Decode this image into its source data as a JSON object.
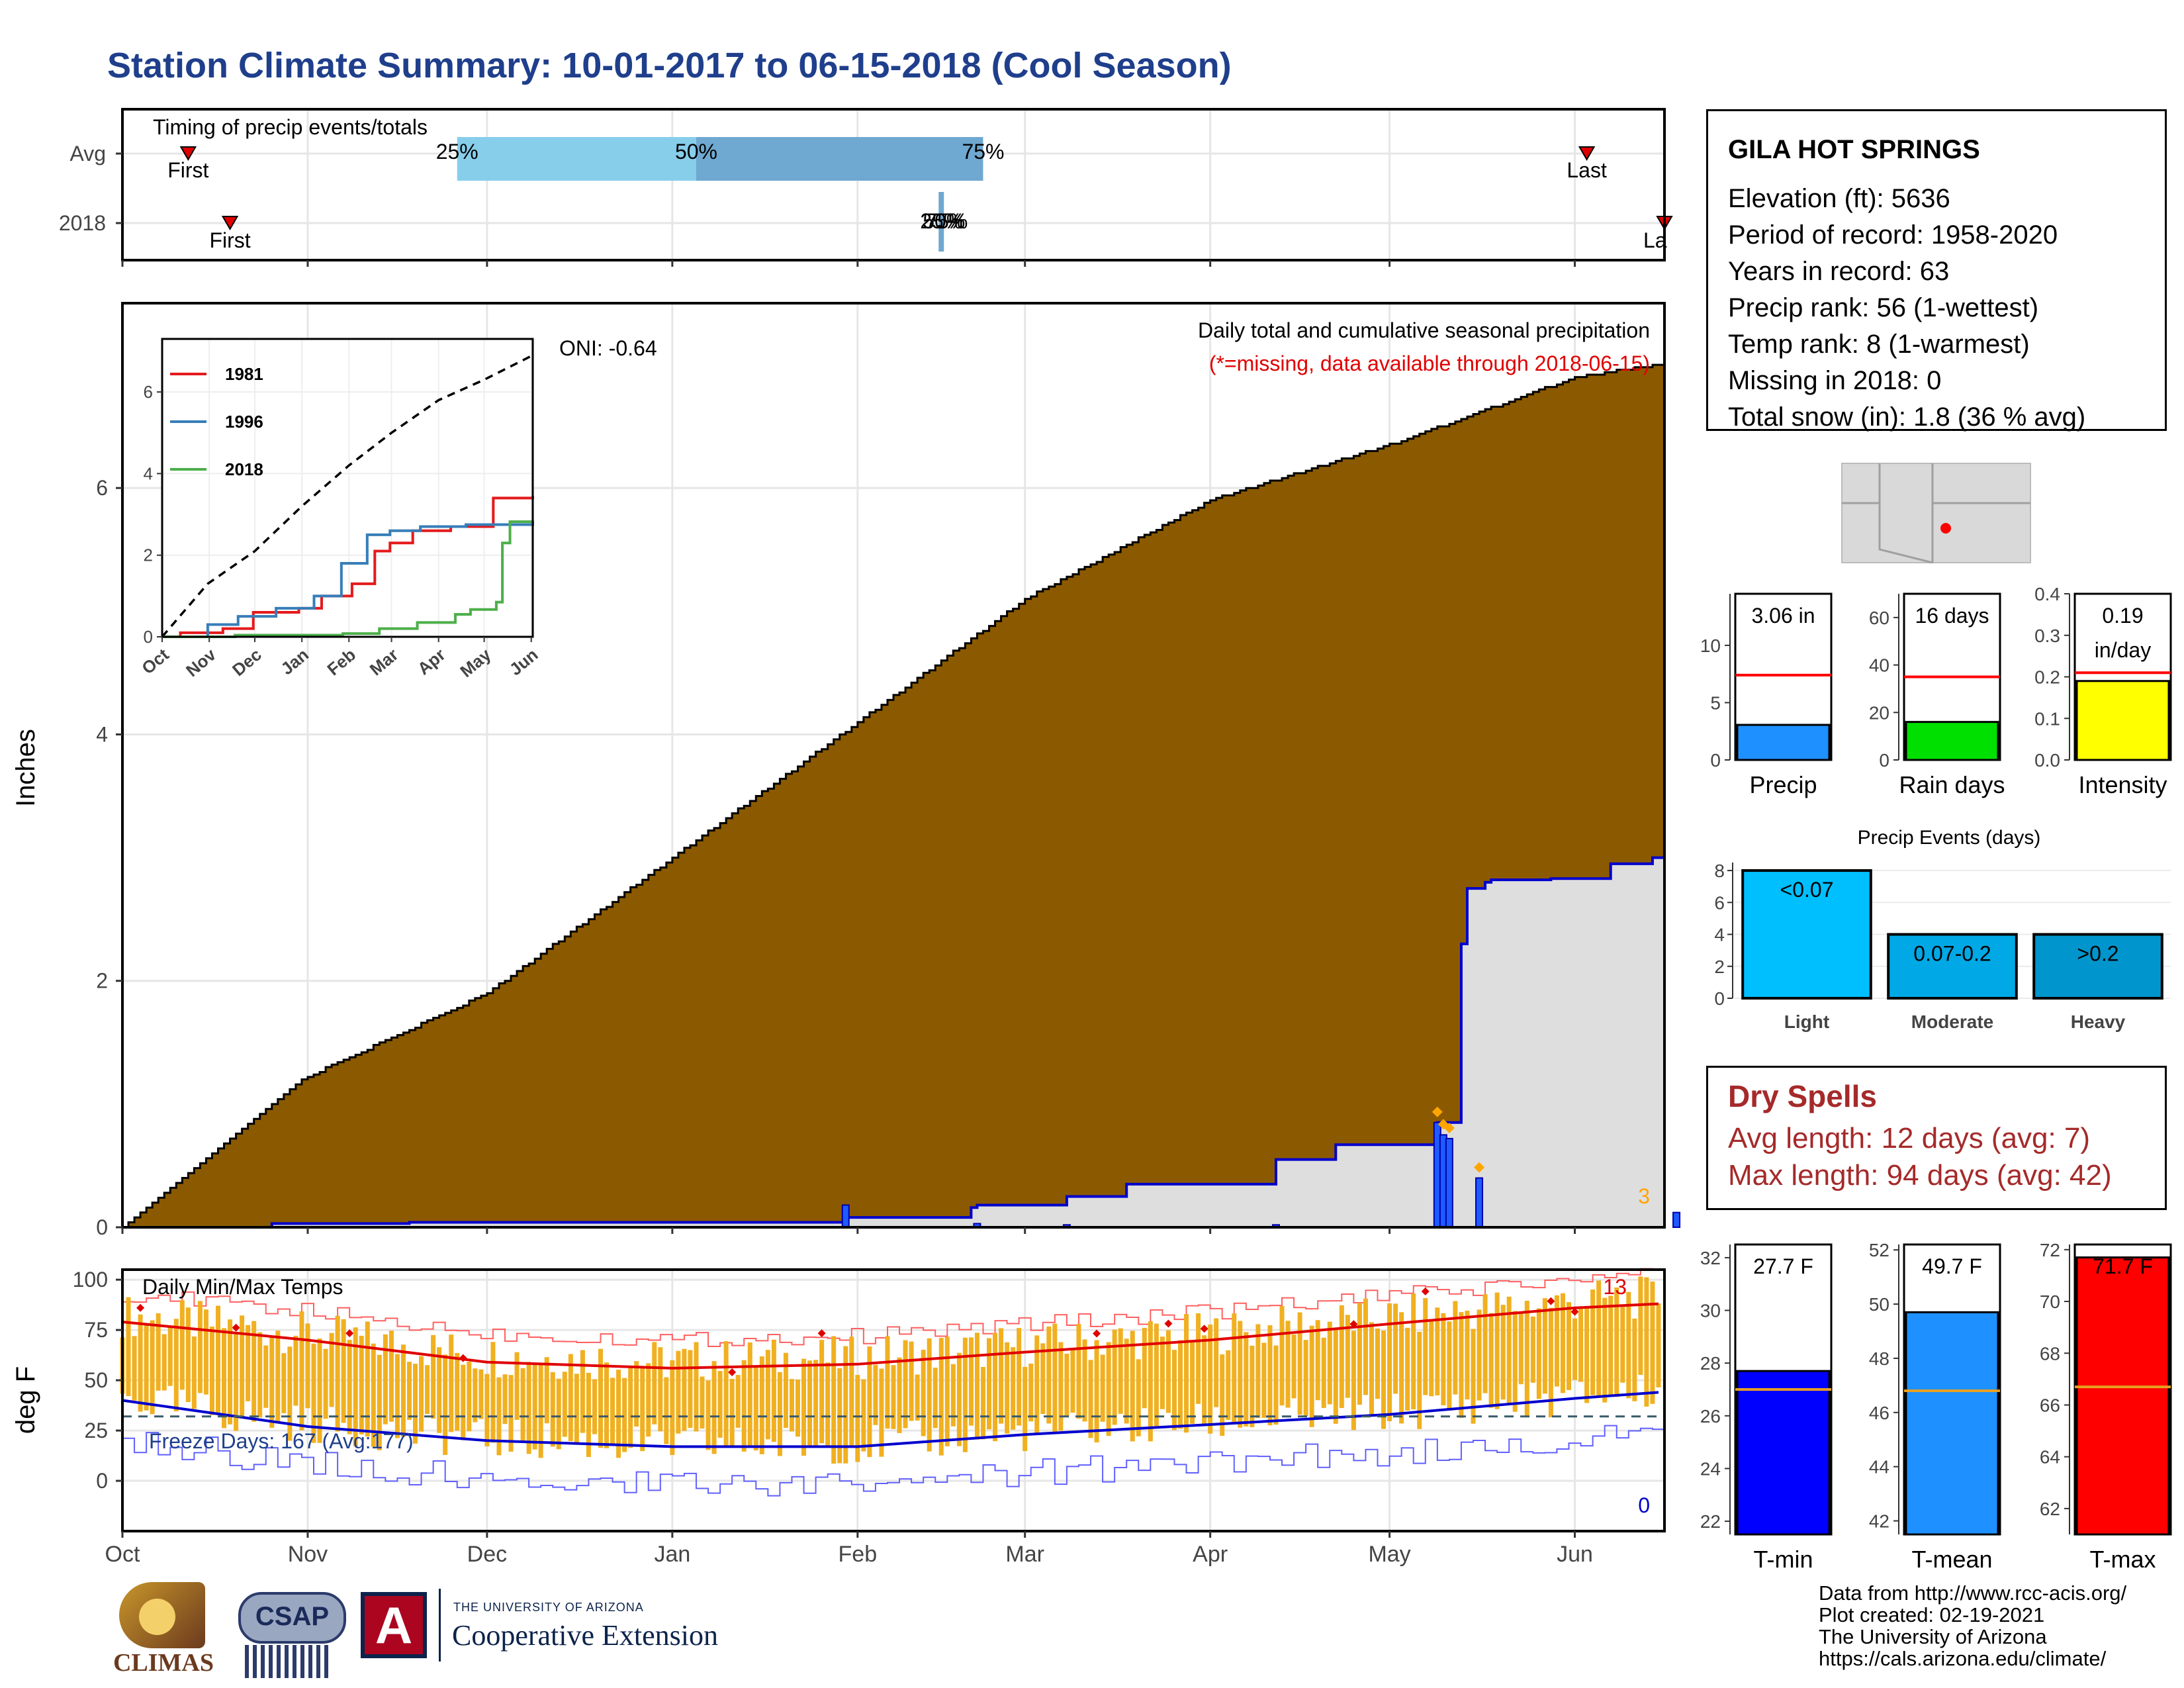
{
  "page": {
    "title": "Station Climate Summary: 10-01-2017 to 06-15-2018 (Cool Season)",
    "credits": [
      "Data from http://www.rcc-acis.org/",
      "Plot created: 02-19-2021",
      "The University of Arizona",
      "https://cals.arizona.edu/climate/"
    ],
    "logos": {
      "climas": "CLIMAS",
      "csap": "CSAP",
      "ua_small": "THE UNIVERSITY OF ARIZONA",
      "ua_big": "Cooperative Extension"
    }
  },
  "station": {
    "name": "GILA HOT SPRINGS",
    "lines": [
      "Elevation (ft): 5636",
      "Period of record: 1958-2020",
      "Years in record: 63",
      "Precip rank: 56 (1-wettest)",
      "Temp rank: 8 (1-warmest)",
      "Missing in 2018: 0",
      "Total snow (in): 1.8 (36 % avg)"
    ]
  },
  "dry_spells": {
    "title": "Dry Spells",
    "avg_line": "Avg length: 12 days (avg: 7)",
    "max_line": "Max length: 94 days (avg: 42)"
  },
  "chart_data": [
    {
      "id": "timing",
      "type": "timeline",
      "label": "Timing of precip events/totals",
      "rows": [
        "Avg",
        "2018"
      ],
      "avg": {
        "first": "Oct 12",
        "last": "Jun 3",
        "p25": "Nov 25",
        "p50": "Jan 5",
        "p75": "Feb 22"
      },
      "y2018": {
        "first": "Oct 19",
        "last": "Jun 15",
        "p25": "Feb 14",
        "p50": "Feb 14",
        "p75": "Feb 14"
      },
      "labels": {
        "first": "First",
        "last": "Last",
        "last_cut": "La",
        "p25": "25%",
        "p50": "50%",
        "p75": "75%",
        "overlap": "25%"
      },
      "colors": {
        "q1": "#87ceeb",
        "q2": "#6fa8d0",
        "marker": "#e00000",
        "bar2018": "#6fa8d0"
      }
    },
    {
      "id": "precip",
      "type": "area",
      "title": "Daily total and cumulative seasonal precipitation",
      "subtitle": "(*=missing, data available through 2018-06-15)",
      "oni": "ONI: -0.64",
      "ylabel": "Inches",
      "ylim": [
        0,
        7.5
      ],
      "yticks": [
        0,
        2,
        4,
        6
      ],
      "x_months": [
        "Oct",
        "Nov",
        "Dec",
        "Jan",
        "Feb",
        "Mar",
        "Apr",
        "May",
        "Jun"
      ],
      "corner_label": "3",
      "avg_cumulative_keypoints": [
        [
          0,
          0
        ],
        [
          30,
          1.2
        ],
        [
          61,
          1.9
        ],
        [
          92,
          3.0
        ],
        [
          123,
          4.1
        ],
        [
          151,
          5.1
        ],
        [
          182,
          5.9
        ],
        [
          212,
          6.35
        ],
        [
          243,
          6.9
        ],
        [
          257,
          7.0
        ]
      ],
      "cum2018_steps": [
        [
          25,
          0.03
        ],
        [
          48,
          0.04
        ],
        [
          119,
          0.04
        ],
        [
          121,
          0.08
        ],
        [
          142,
          0.16
        ],
        [
          143,
          0.18
        ],
        [
          158,
          0.25
        ],
        [
          168,
          0.35
        ],
        [
          193,
          0.55
        ],
        [
          203,
          0.67
        ],
        [
          220,
          0.85
        ],
        [
          224,
          2.3
        ],
        [
          225,
          2.75
        ],
        [
          228,
          2.8
        ],
        [
          229,
          2.82
        ],
        [
          239,
          2.83
        ],
        [
          249,
          2.95
        ],
        [
          256,
          3.0
        ]
      ],
      "daily_bars": [
        [
          121,
          0.18
        ],
        [
          143,
          0.03
        ],
        [
          158,
          0.02
        ],
        [
          193,
          0.02
        ],
        [
          220,
          0.85
        ],
        [
          221,
          0.75
        ],
        [
          222,
          0.72
        ],
        [
          227,
          0.4
        ],
        [
          260,
          0.12
        ]
      ],
      "colors": {
        "avg_fill": "#8b5a00",
        "obs_fill": "#dedede",
        "obs_line": "#0000cd",
        "bars": "#1e5bff",
        "extreme": "#ffa500"
      }
    },
    {
      "id": "inset",
      "type": "line",
      "xlabels": [
        "Oct",
        "Nov",
        "Dec",
        "Jan",
        "Feb",
        "Mar",
        "Apr",
        "May",
        "Jun"
      ],
      "yticks": [
        0,
        2,
        4,
        6
      ],
      "series": [
        {
          "name": "1981",
          "color": "#e41a1c",
          "points": [
            [
              0,
              0
            ],
            [
              12,
              0.1
            ],
            [
              40,
              0.2
            ],
            [
              60,
              0.6
            ],
            [
              90,
              0.7
            ],
            [
              105,
              1.0
            ],
            [
              125,
              1.3
            ],
            [
              140,
              2.1
            ],
            [
              150,
              2.3
            ],
            [
              165,
              2.6
            ],
            [
              190,
              2.7
            ],
            [
              218,
              3.4
            ],
            [
              244,
              3.45
            ]
          ]
        },
        {
          "name": "1996",
          "color": "#377eb8",
          "points": [
            [
              0,
              0
            ],
            [
              30,
              0.3
            ],
            [
              50,
              0.5
            ],
            [
              75,
              0.7
            ],
            [
              100,
              1.0
            ],
            [
              118,
              1.8
            ],
            [
              135,
              2.5
            ],
            [
              150,
              2.6
            ],
            [
              170,
              2.7
            ],
            [
              200,
              2.75
            ],
            [
              244,
              2.85
            ]
          ]
        },
        {
          "name": "2018",
          "color": "#4daf4a",
          "points": [
            [
              0,
              0
            ],
            [
              48,
              0.04
            ],
            [
              119,
              0.08
            ],
            [
              143,
              0.2
            ],
            [
              168,
              0.35
            ],
            [
              193,
              0.55
            ],
            [
              203,
              0.67
            ],
            [
              220,
              0.85
            ],
            [
              224,
              2.3
            ],
            [
              229,
              2.82
            ],
            [
              244,
              2.83
            ]
          ]
        }
      ],
      "avg_dashed": [
        [
          0,
          0
        ],
        [
          30,
          1.3
        ],
        [
          61,
          2.1
        ],
        [
          92,
          3.2
        ],
        [
          123,
          4.2
        ],
        [
          151,
          5.0
        ],
        [
          182,
          5.8
        ],
        [
          212,
          6.3
        ],
        [
          244,
          6.9
        ]
      ]
    },
    {
      "id": "bars_small",
      "type": "bar",
      "panels": [
        {
          "label": "Precip",
          "value": 3.06,
          "value_text": "3.06 in",
          "avg": 7.4,
          "ylim": [
            0,
            14.5
          ],
          "yticks": [
            0,
            5,
            10
          ],
          "color": "#1e90ff"
        },
        {
          "label": "Rain days",
          "value": 16,
          "value_text": "16 days",
          "avg": 35,
          "ylim": [
            0,
            70
          ],
          "yticks": [
            0,
            20,
            40,
            60
          ],
          "color": "#00e000"
        },
        {
          "label": "Intensity",
          "value": 0.19,
          "value_text": "0.19\nin/day",
          "avg": 0.21,
          "ylim": [
            0,
            0.4
          ],
          "yticks": [
            "0.0",
            "0.1",
            "0.2",
            "0.3",
            "0.4"
          ],
          "color": "#ffff00"
        }
      ]
    },
    {
      "id": "events",
      "type": "bar",
      "title": "Precip Events (days)",
      "categories": [
        "Light",
        "Moderate",
        "Heavy"
      ],
      "bar_labels": [
        "<0.07",
        "0.07-0.2",
        ">0.2"
      ],
      "values": [
        8,
        4,
        4
      ],
      "ylim": [
        0,
        8.5
      ],
      "yticks": [
        0,
        2,
        4,
        6,
        8
      ],
      "colors": [
        "#00bfff",
        "#00a8e6",
        "#0095cc"
      ]
    },
    {
      "id": "temps",
      "type": "bar",
      "title": "Daily Min/Max Temps",
      "ylabel": "deg F",
      "ylim": [
        -25,
        105
      ],
      "yticks": [
        0,
        25,
        50,
        75,
        100
      ],
      "freeze_label": "Freeze Days: 167 (Avg:177)",
      "record_high_count": "13",
      "record_low_count": "0",
      "x_months": [
        "Oct",
        "Nov",
        "Dec",
        "Jan",
        "Feb",
        "Mar",
        "Apr",
        "May",
        "Jun"
      ],
      "normal_max": [
        [
          0,
          79
        ],
        [
          31,
          70
        ],
        [
          61,
          59
        ],
        [
          92,
          56
        ],
        [
          123,
          58
        ],
        [
          151,
          64
        ],
        [
          182,
          70
        ],
        [
          212,
          78
        ],
        [
          243,
          86
        ],
        [
          257,
          88
        ]
      ],
      "normal_min": [
        [
          0,
          40
        ],
        [
          31,
          27
        ],
        [
          61,
          20
        ],
        [
          92,
          17
        ],
        [
          123,
          17
        ],
        [
          151,
          23
        ],
        [
          182,
          28
        ],
        [
          212,
          33
        ],
        [
          243,
          41
        ],
        [
          257,
          44
        ]
      ],
      "freeze_line": 32,
      "colors": {
        "bars": "#f0b020",
        "max": "#e00000",
        "min": "#0000cd",
        "freeze": "#3a5a6a"
      }
    },
    {
      "id": "temp_bars",
      "type": "bar",
      "panels": [
        {
          "label": "T-min",
          "value": 27.7,
          "value_text": "27.7 F",
          "avg": 27.0,
          "ylim": [
            21.5,
            32.5
          ],
          "yticks": [
            22,
            24,
            26,
            28,
            30,
            32
          ],
          "color": "#0000ff"
        },
        {
          "label": "T-mean",
          "value": 49.7,
          "value_text": "49.7 F",
          "avg": 46.8,
          "ylim": [
            41.5,
            52.2
          ],
          "yticks": [
            42,
            44,
            46,
            48,
            50,
            52
          ],
          "color": "#1e90ff"
        },
        {
          "label": "T-max",
          "value": 71.7,
          "value_text": "71.7 F",
          "avg": 66.7,
          "ylim": [
            61,
            72.2
          ],
          "yticks": [
            62,
            64,
            66,
            68,
            70,
            72
          ],
          "color": "#ff0000"
        }
      ]
    }
  ]
}
